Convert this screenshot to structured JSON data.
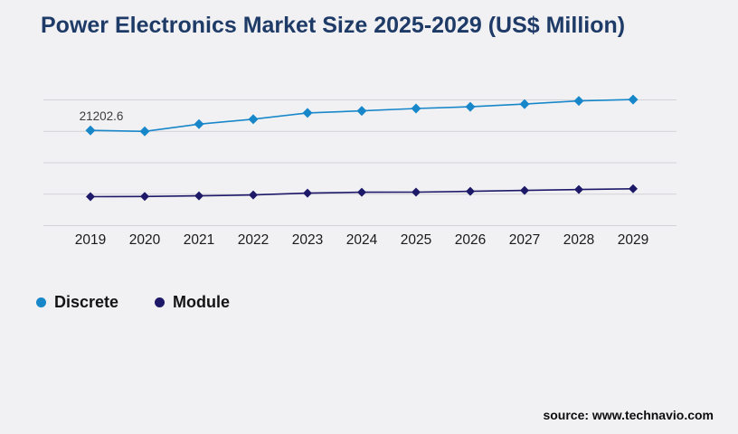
{
  "page": {
    "title": "Power Electronics Market Size 2025-2029 (US$ Million)",
    "source": "source: www.technavio.com",
    "background_color": "#f1f1f4",
    "title_color": "#1e3a66",
    "gridline_color": "#d3d3d7"
  },
  "legend": {
    "items": [
      {
        "label": "Discrete",
        "color": "#1887c9"
      },
      {
        "label": "Module",
        "color": "#1d1968"
      }
    ]
  },
  "chart_data": {
    "type": "line",
    "title": "Power Electronics Market Size 2025-2029 (US$ Million)",
    "categories": [
      "2019",
      "2020",
      "2021",
      "2022",
      "2023",
      "2024",
      "2025",
      "2026",
      "2027",
      "2028",
      "2029"
    ],
    "series": [
      {
        "name": "Discrete",
        "color": "#1887c9",
        "marker": "diamond",
        "values": [
          21202.6,
          21000,
          22600,
          23700,
          25100,
          25560,
          26090,
          26470,
          27070,
          27770,
          28080
        ]
      },
      {
        "name": "Module",
        "color": "#1d1968",
        "marker": "diamond",
        "values": [
          6450,
          6490,
          6630,
          6830,
          7230,
          7440,
          7460,
          7640,
          7840,
          8040,
          8200
        ]
      }
    ],
    "data_labels": [
      {
        "series_index": 0,
        "category_index": 0,
        "text": "21202.6"
      }
    ],
    "xlabel": "",
    "ylabel": "",
    "ylim": [
      0,
      28000
    ],
    "gridline_count": 5,
    "grid": true,
    "legend_position": "bottom-left",
    "values_estimated_from_pixels": true
  }
}
